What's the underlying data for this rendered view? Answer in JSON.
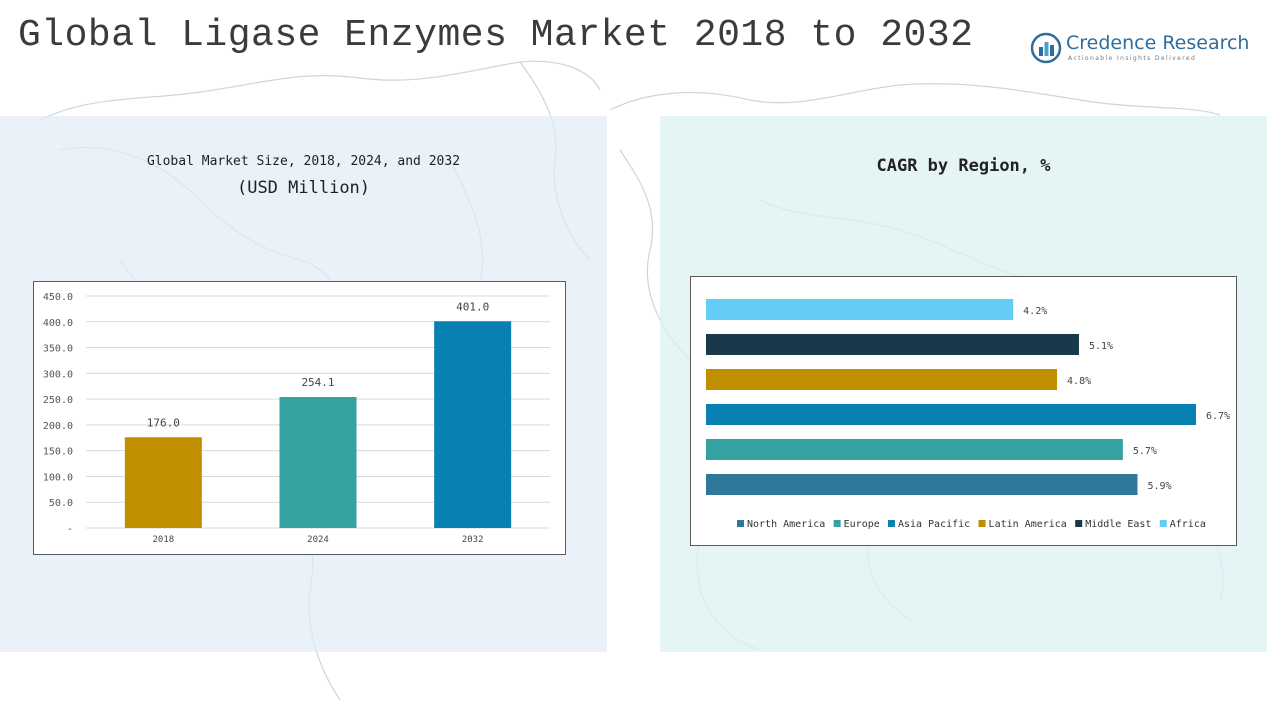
{
  "header": {
    "title": "Global Ligase Enzymes Market 2018 to 2032"
  },
  "logo": {
    "name": "Credence Research",
    "tagline": "Actionable Insights Delivered",
    "icon": "bar-chart-logo-icon"
  },
  "colors": {
    "title_text": "#3b3b3b",
    "panel_left_bg": "#e2ecf7",
    "panel_right_bg": "#def1f2",
    "map_lines": "#c9d6e0"
  },
  "chart_data": [
    {
      "type": "bar",
      "title": "Global Market Size, 2018, 2024, and 2032",
      "subtitle": "(USD Million)",
      "categories": [
        "2018",
        "2024",
        "2032"
      ],
      "values": [
        176.0,
        254.1,
        401.0
      ],
      "value_labels": [
        "176.0",
        "254.1",
        "401.0"
      ],
      "colors": [
        "#bf8f00",
        "#35a2a2",
        "#0880b2"
      ],
      "yticks": [
        0,
        50,
        100,
        150,
        200,
        250,
        300,
        350,
        400,
        450
      ],
      "ytick_labels": [
        "-",
        "50.0",
        "100.0",
        "150.0",
        "200.0",
        "250.0",
        "300.0",
        "350.0",
        "400.0",
        "450.0"
      ],
      "ylim": [
        0,
        450
      ],
      "xlabel": "",
      "ylabel": "",
      "grid": true
    },
    {
      "type": "bar",
      "orientation": "horizontal",
      "title": "CAGR by Region, %",
      "categories": [
        "Africa",
        "Middle East",
        "Latin America",
        "Asia Pacific",
        "Europe",
        "North America"
      ],
      "values": [
        4.2,
        5.1,
        4.8,
        6.7,
        5.7,
        5.9
      ],
      "value_labels": [
        "4.2%",
        "5.1%",
        "4.8%",
        "6.7%",
        "5.7%",
        "5.9%"
      ],
      "colors": [
        "#64cdf6",
        "#18394a",
        "#bf8f00",
        "#0880b2",
        "#35a2a2",
        "#2e789a"
      ],
      "legend": [
        {
          "label": "North America",
          "color": "#2e789a"
        },
        {
          "label": "Europe",
          "color": "#35a2a2"
        },
        {
          "label": "Asia Pacific",
          "color": "#0880b2"
        },
        {
          "label": "Latin America",
          "color": "#bf8f00"
        },
        {
          "label": "Middle East",
          "color": "#18394a"
        },
        {
          "label": "Africa",
          "color": "#64cdf6"
        }
      ],
      "legend_position": "bottom",
      "xlim": [
        0,
        6.7
      ],
      "grid": false
    }
  ]
}
